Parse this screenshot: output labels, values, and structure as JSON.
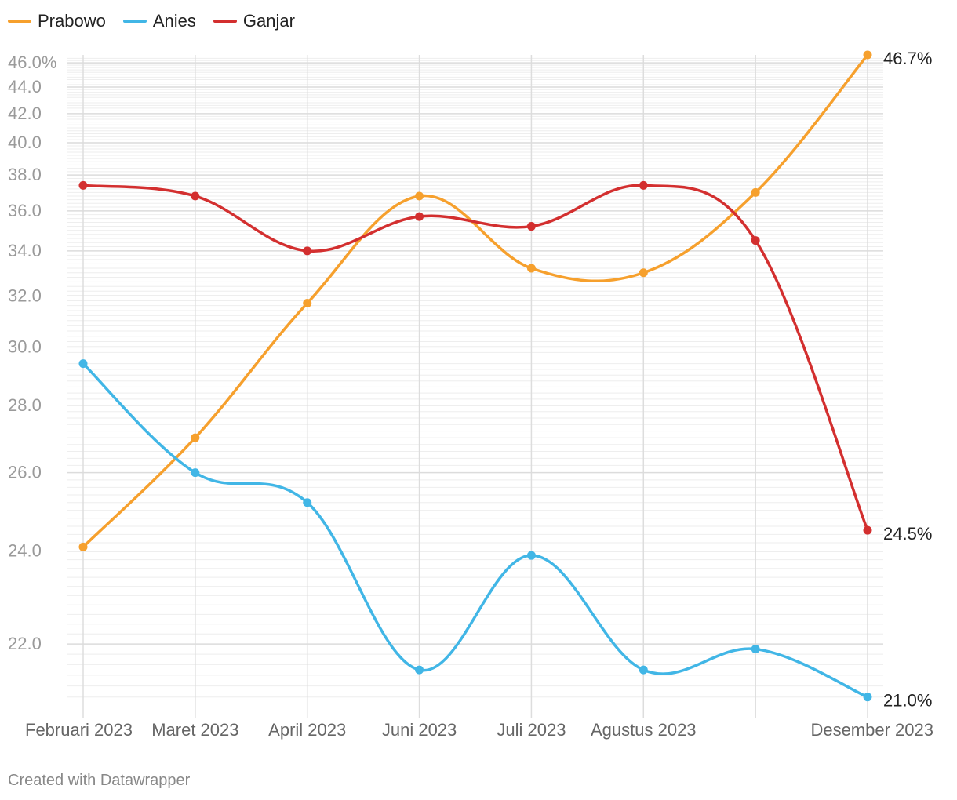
{
  "chart_data": {
    "type": "line",
    "categories": [
      "Februari 2023",
      "Maret 2023",
      "April 2023",
      "Juni 2023",
      "Juli 2023",
      "Agustus 2023",
      "",
      "Desember 2023"
    ],
    "x_labels": [
      "Februari 2023",
      "Maret 2023",
      "April 2023",
      "Juni 2023",
      "Juli 2023",
      "Agustus 2023",
      "Desember 2023"
    ],
    "y_ticks": [
      "46.0%",
      "44.0",
      "42.0",
      "40.0",
      "38.0",
      "36.0",
      "34.0",
      "32.0",
      "30.0",
      "28.0",
      "26.0",
      "24.0",
      "22.0"
    ],
    "y_tick_values": [
      46,
      44,
      42,
      40,
      38,
      36,
      34,
      32,
      30,
      28,
      26,
      24,
      22
    ],
    "ylim": [
      20.8,
      46.7
    ],
    "y_scale": "reciprocal",
    "grid": true,
    "legend": "top-left",
    "series": [
      {
        "name": "Prabowo",
        "color": "#f6a02d",
        "values": [
          24.1,
          27.0,
          31.7,
          36.8,
          33.2,
          33.0,
          37.0,
          46.7
        ],
        "end_label": "46.7%"
      },
      {
        "name": "Anies",
        "color": "#41b6e6",
        "values": [
          29.4,
          26.0,
          25.2,
          21.5,
          23.9,
          21.5,
          21.9,
          21.0
        ],
        "end_label": "21.0%"
      },
      {
        "name": "Ganjar",
        "color": "#d32f2f",
        "values": [
          37.4,
          36.8,
          34.0,
          35.7,
          35.2,
          37.4,
          34.5,
          24.5
        ],
        "end_label": "24.5%"
      }
    ]
  },
  "footer": {
    "credit": "Created with Datawrapper"
  }
}
